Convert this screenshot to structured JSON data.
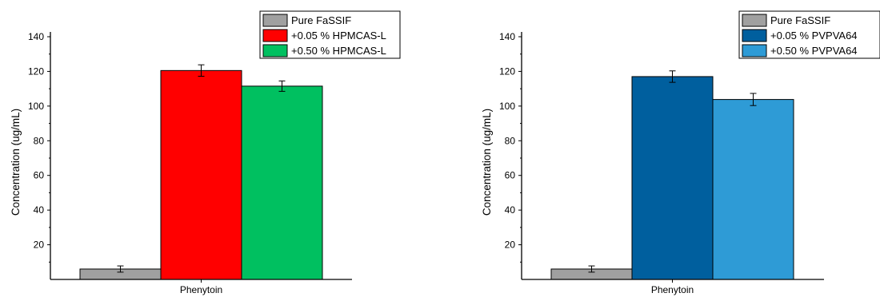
{
  "chart_data": [
    {
      "type": "bar",
      "categories": [
        "Phenytoin"
      ],
      "xlabel": "Phenytoin",
      "ylabel": "Concentration (ug/mL)",
      "ylim": [
        0,
        140
      ],
      "yticks": [
        20,
        40,
        60,
        80,
        100,
        120,
        140
      ],
      "grid": false,
      "legend_position": "top-right",
      "series": [
        {
          "name": "Pure FaSSIF",
          "values": [
            6
          ],
          "error": [
            1.8
          ],
          "color": "#a0a0a0"
        },
        {
          "name": "+0.05 % HPMCAS-L",
          "values": [
            120.5
          ],
          "error": [
            3.3
          ],
          "color": "#ff0000"
        },
        {
          "name": "+0.50 % HPMCAS-L",
          "values": [
            111.5
          ],
          "error": [
            3.0
          ],
          "color": "#00c060"
        }
      ]
    },
    {
      "type": "bar",
      "categories": [
        "Phenytoin"
      ],
      "xlabel": "Phenytoin",
      "ylabel": "Concentration (ug/mL)",
      "ylim": [
        0,
        140
      ],
      "yticks": [
        20,
        40,
        60,
        80,
        100,
        120,
        140
      ],
      "grid": false,
      "legend_position": "top-right",
      "series": [
        {
          "name": "Pure FaSSIF",
          "values": [
            6
          ],
          "error": [
            1.8
          ],
          "color": "#a0a0a0"
        },
        {
          "name": "+0.05 % PVPVA64",
          "values": [
            117
          ],
          "error": [
            3.3
          ],
          "color": "#005f9e"
        },
        {
          "name": "+0.50 % PVPVA64",
          "values": [
            103.8
          ],
          "error": [
            3.5
          ],
          "color": "#2e9bd6"
        }
      ]
    }
  ]
}
